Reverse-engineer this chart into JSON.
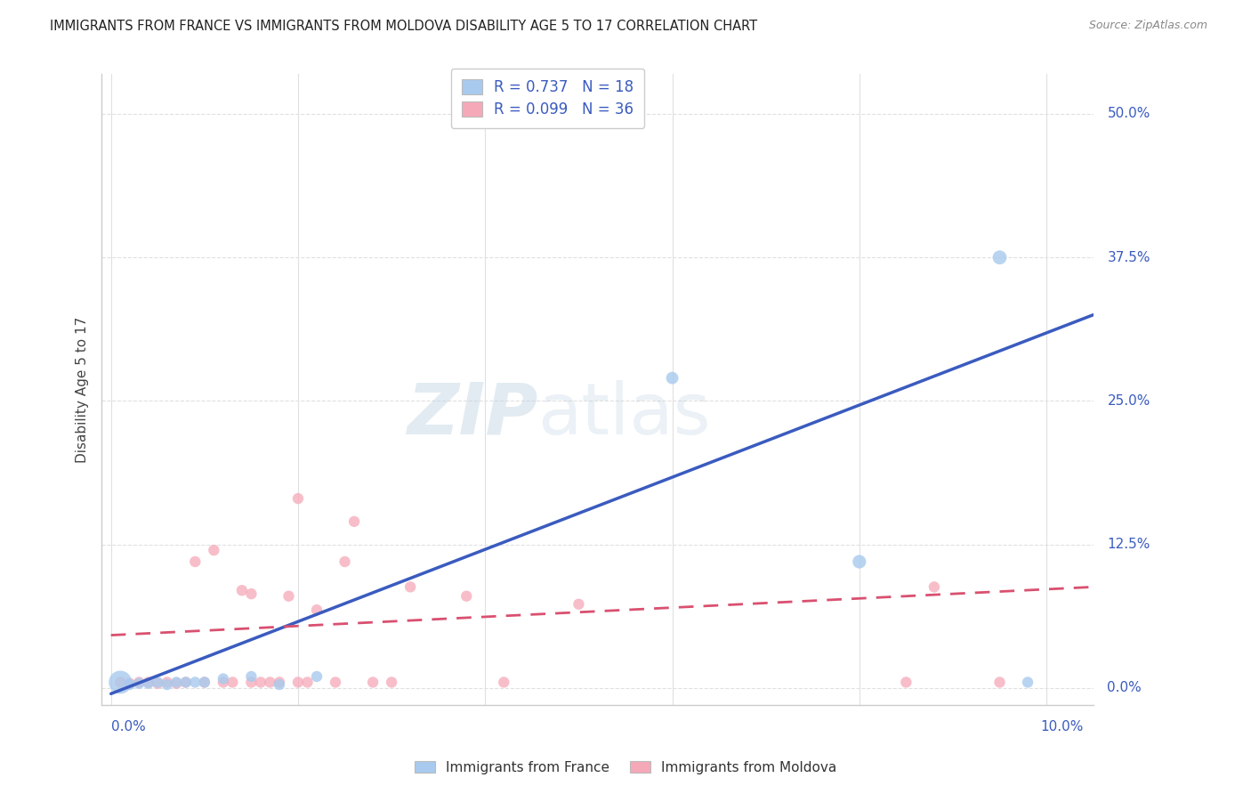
{
  "title": "IMMIGRANTS FROM FRANCE VS IMMIGRANTS FROM MOLDOVA DISABILITY AGE 5 TO 17 CORRELATION CHART",
  "source": "Source: ZipAtlas.com",
  "ylabel": "Disability Age 5 to 17",
  "ytick_labels": [
    "0.0%",
    "12.5%",
    "25.0%",
    "37.5%",
    "50.0%"
  ],
  "ytick_values": [
    0.0,
    0.125,
    0.25,
    0.375,
    0.5
  ],
  "xtick_values": [
    0.0,
    0.02,
    0.04,
    0.06,
    0.08,
    0.1
  ],
  "xlim": [
    -0.001,
    0.105
  ],
  "ylim": [
    -0.015,
    0.535
  ],
  "france_color": "#a8caee",
  "moldova_color": "#f5a8b8",
  "france_line_color": "#3a5bbf",
  "moldova_line_color": "#d95070",
  "label_color": "#3a5bbf",
  "france_R": "0.737",
  "france_N": "18",
  "moldova_R": "0.099",
  "moldova_N": "36",
  "france_points_x": [
    0.001,
    0.002,
    0.003,
    0.004,
    0.005,
    0.006,
    0.007,
    0.008,
    0.009,
    0.01,
    0.012,
    0.015,
    0.018,
    0.022,
    0.06,
    0.08,
    0.095,
    0.098
  ],
  "france_points_y": [
    0.005,
    0.003,
    0.004,
    0.004,
    0.005,
    0.003,
    0.005,
    0.005,
    0.005,
    0.005,
    0.008,
    0.01,
    0.003,
    0.01,
    0.27,
    0.11,
    0.375,
    0.005
  ],
  "france_sizes": [
    350,
    80,
    80,
    80,
    80,
    80,
    80,
    80,
    80,
    80,
    80,
    80,
    80,
    80,
    100,
    120,
    130,
    80
  ],
  "moldova_points_x": [
    0.001,
    0.002,
    0.003,
    0.004,
    0.005,
    0.006,
    0.007,
    0.008,
    0.009,
    0.01,
    0.011,
    0.012,
    0.013,
    0.014,
    0.015,
    0.015,
    0.016,
    0.017,
    0.018,
    0.019,
    0.02,
    0.02,
    0.021,
    0.022,
    0.024,
    0.025,
    0.026,
    0.028,
    0.03,
    0.032,
    0.038,
    0.042,
    0.05,
    0.085,
    0.088,
    0.095
  ],
  "moldova_points_y": [
    0.005,
    0.004,
    0.005,
    0.005,
    0.004,
    0.005,
    0.004,
    0.005,
    0.11,
    0.005,
    0.12,
    0.005,
    0.005,
    0.085,
    0.005,
    0.082,
    0.005,
    0.005,
    0.005,
    0.08,
    0.005,
    0.165,
    0.005,
    0.068,
    0.005,
    0.11,
    0.145,
    0.005,
    0.005,
    0.088,
    0.08,
    0.005,
    0.073,
    0.005,
    0.088,
    0.005
  ],
  "moldova_sizes": [
    80,
    80,
    80,
    80,
    80,
    80,
    80,
    80,
    80,
    80,
    80,
    80,
    80,
    80,
    80,
    80,
    80,
    80,
    80,
    80,
    80,
    80,
    80,
    80,
    80,
    80,
    80,
    80,
    80,
    80,
    80,
    80,
    80,
    80,
    80,
    80
  ],
  "france_line_x0": 0.0,
  "france_line_y0": -0.005,
  "france_line_x1": 0.105,
  "france_line_y1": 0.325,
  "moldova_line_x0": 0.0,
  "moldova_line_y0": 0.046,
  "moldova_line_x1": 0.105,
  "moldova_line_y1": 0.088,
  "grid_color": "#e0e0e0",
  "background_color": "#ffffff"
}
